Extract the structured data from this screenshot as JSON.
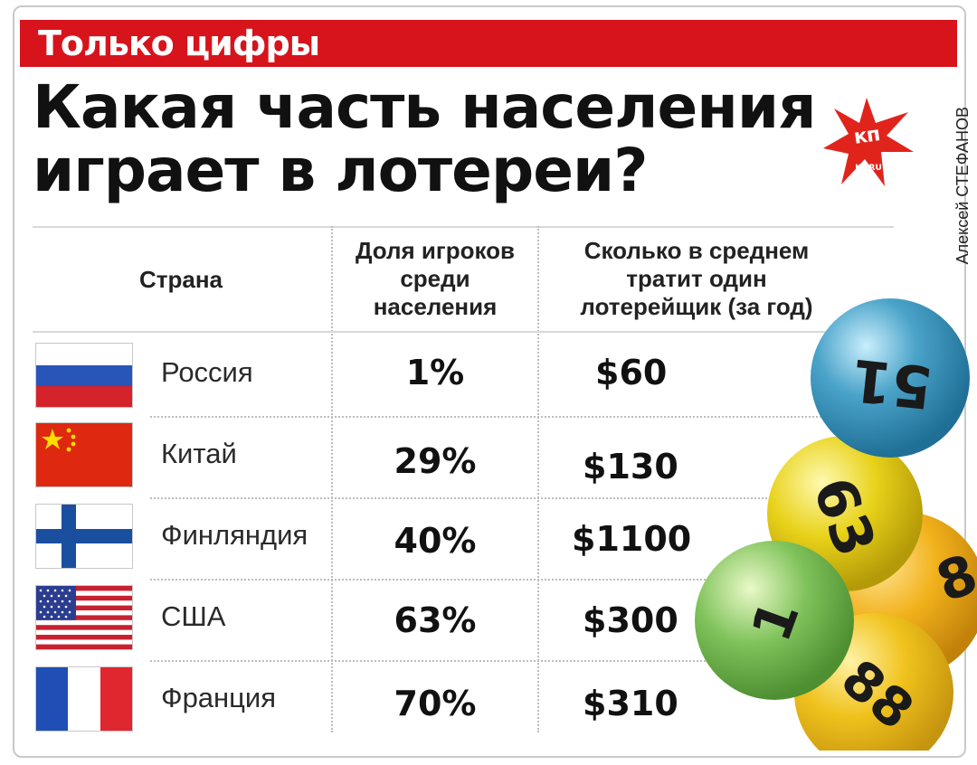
{
  "header": {
    "label": "Только цифры",
    "title_line1": "Какая часть населения",
    "title_line2": "играет в лотереи?",
    "logo_text": "кп",
    "logo_subtext": "KP.RU",
    "author": "Алексей СТЕФАНОВ"
  },
  "table": {
    "columns": [
      "Страна",
      "Доля игроков среди населения",
      "Сколько в среднем тратит один лотерейщик (за год)"
    ],
    "column_lines": {
      "share": [
        "Доля игроков",
        "среди",
        "населения"
      ],
      "spend": [
        "Сколько в среднем",
        "тратит один",
        "лотерейщик (за год)"
      ]
    },
    "rows": [
      {
        "country": "Россия",
        "flag": "russia-flag",
        "share": "1%",
        "spend": "$60"
      },
      {
        "country": "Китай",
        "flag": "china-flag",
        "share": "29%",
        "spend": "$130"
      },
      {
        "country": "Финляндия",
        "flag": "finland-flag",
        "share": "40%",
        "spend": "$1100"
      },
      {
        "country": "США",
        "flag": "usa-flag",
        "share": "63%",
        "spend": "$300"
      },
      {
        "country": "Франция",
        "flag": "france-flag",
        "share": "70%",
        "spend": "$310"
      }
    ]
  },
  "decor": {
    "ball_numbers": [
      "51",
      "63",
      "8",
      "1",
      "88"
    ],
    "ball_colors": [
      "#4aa3c9",
      "#e8d21a",
      "#f2b21c",
      "#7fc25a",
      "#f0c21c"
    ],
    "accent_color": "#d7131c"
  }
}
